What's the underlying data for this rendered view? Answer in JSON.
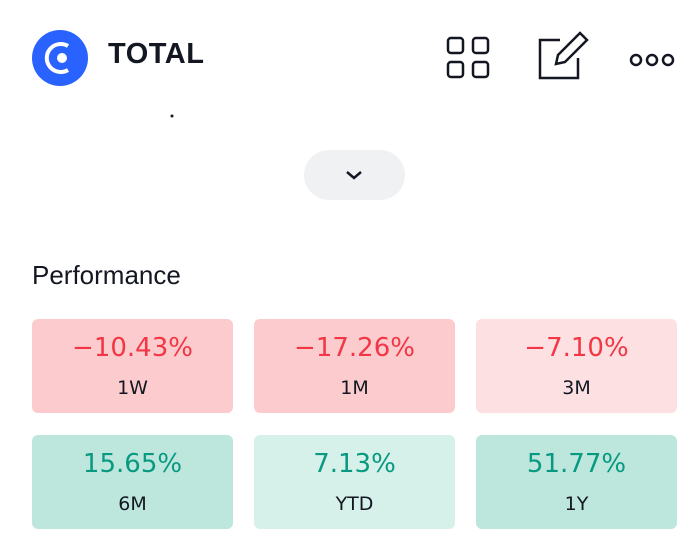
{
  "header": {
    "title": "TOTAL"
  },
  "performance": {
    "title": "Performance",
    "items": [
      {
        "value": "−10.43%",
        "period": "1W"
      },
      {
        "value": "−17.26%",
        "period": "1M"
      },
      {
        "value": "−7.10%",
        "period": "3M"
      },
      {
        "value": "15.65%",
        "period": "6M"
      },
      {
        "value": "7.13%",
        "period": "YTD"
      },
      {
        "value": "51.77%",
        "period": "1Y"
      }
    ]
  }
}
